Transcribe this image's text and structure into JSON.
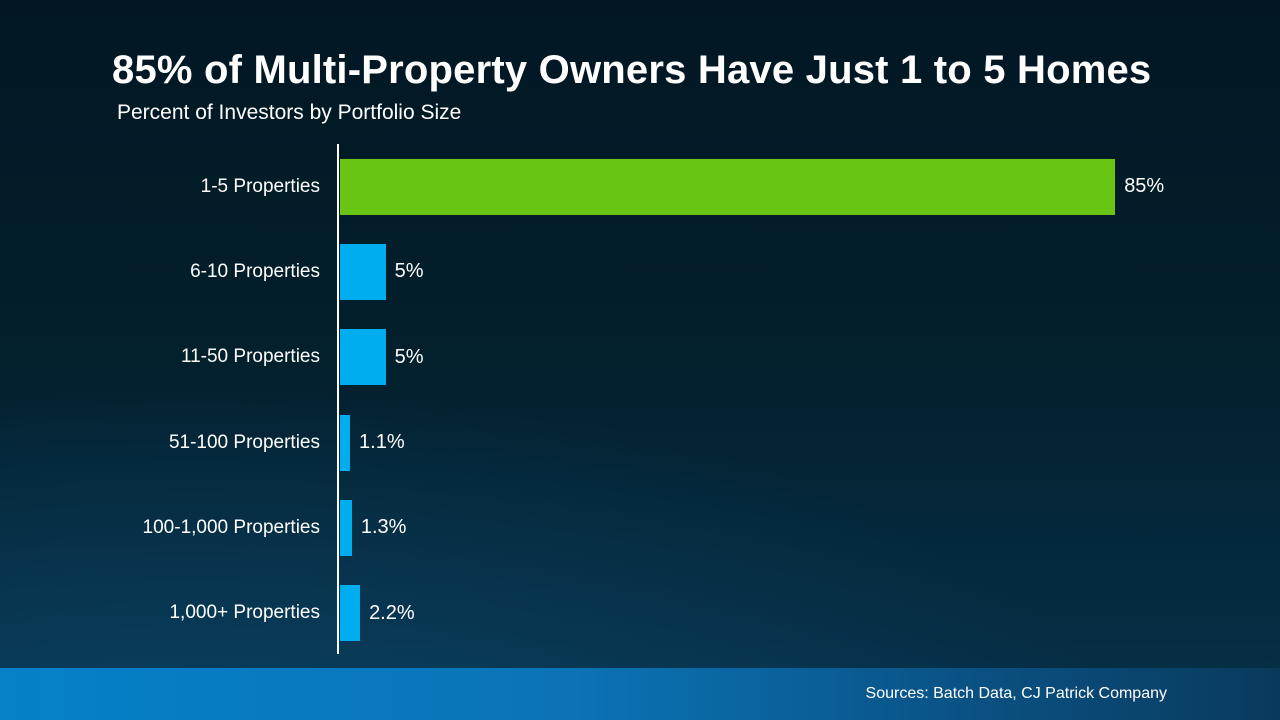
{
  "header": {
    "title": "85% of Multi-Property Owners Have Just 1 to 5 Homes",
    "subtitle": "Percent of Investors by Portfolio Size"
  },
  "footer": {
    "source": "Sources: Batch Data, CJ Patrick Company"
  },
  "colors": {
    "background_top": "#021723",
    "background_bottom": "#063049",
    "highlight_green": "#69c414",
    "bar_blue": "#00aeef",
    "axis_white": "#ffffff",
    "footer_blue_left": "#0581c9",
    "footer_blue_right": "#093a5c"
  },
  "chart_data": {
    "type": "bar",
    "orientation": "horizontal",
    "title": "85% of Multi-Property Owners Have Just 1 to 5 Homes",
    "subtitle": "Percent of Investors by Portfolio Size",
    "xlabel": "",
    "ylabel": "",
    "xlim": [
      0,
      103
    ],
    "grid": false,
    "legend": false,
    "categories": [
      "1-5 Properties",
      "6-10 Properties",
      "11-50 Properties",
      "51-100 Properties",
      "100-1,000 Properties",
      "1,000+ Properties"
    ],
    "values": [
      85,
      5,
      5,
      1.1,
      1.3,
      2.2
    ],
    "value_labels": [
      "85%",
      "5%",
      "5%",
      "1.1%",
      "1.3%",
      "2.2%"
    ],
    "bar_colors": [
      "#69c414",
      "#00aeef",
      "#00aeef",
      "#00aeef",
      "#00aeef",
      "#00aeef"
    ]
  }
}
